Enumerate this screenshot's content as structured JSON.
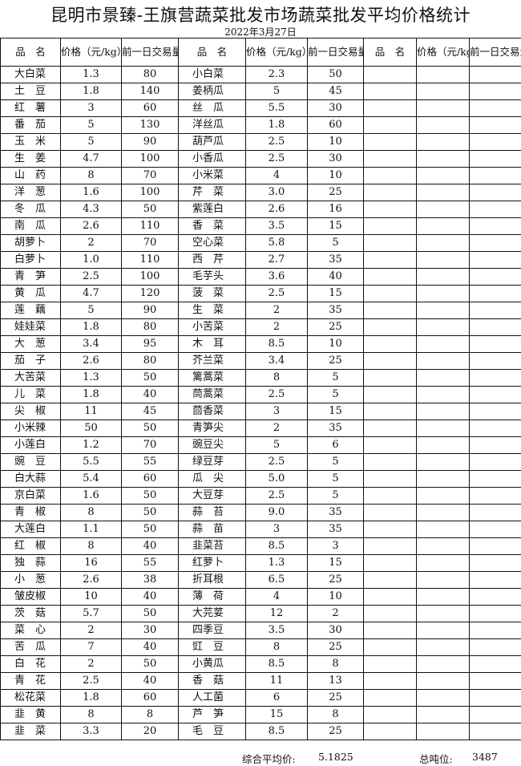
{
  "title": "昆明市景臻-王旗营蔬菜批发市场蔬菜批发平均价格统计",
  "date": "2022年3月27日",
  "headers": {
    "name": "品　名",
    "price": "价格（元/kg）",
    "volume": "前一日交易量(吨)"
  },
  "rows": [
    [
      "大白菜",
      "1.3",
      "80",
      "小白菜",
      "2.3",
      "50"
    ],
    [
      "土　豆",
      "1.8",
      "140",
      "姜柄瓜",
      "5",
      "45"
    ],
    [
      "红　薯",
      "3",
      "60",
      "丝　瓜",
      "5.5",
      "30"
    ],
    [
      "番　茄",
      "5",
      "130",
      "洋丝瓜",
      "1.8",
      "60"
    ],
    [
      "玉　米",
      "5",
      "90",
      "葫芦瓜",
      "2.5",
      "10"
    ],
    [
      "生　姜",
      "4.7",
      "100",
      "小香瓜",
      "2.5",
      "30"
    ],
    [
      "山　药",
      "8",
      "70",
      "小米菜",
      "4",
      "10"
    ],
    [
      "洋　葱",
      "1.6",
      "100",
      "芹　菜",
      "3.0",
      "25"
    ],
    [
      "冬　瓜",
      "4.3",
      "50",
      "紫莲白",
      "2.6",
      "16"
    ],
    [
      "南　瓜",
      "2.6",
      "110",
      "香　菜",
      "3.5",
      "15"
    ],
    [
      "胡萝卜",
      "2",
      "70",
      "空心菜",
      "5.8",
      "5"
    ],
    [
      "白萝卜",
      "1.0",
      "110",
      "西　芹",
      "2.7",
      "35"
    ],
    [
      "青　笋",
      "2.5",
      "100",
      "毛芋头",
      "3.6",
      "40"
    ],
    [
      "黄　瓜",
      "4.7",
      "120",
      "菠　菜",
      "2.5",
      "15"
    ],
    [
      "莲　藕",
      "5",
      "90",
      "生　菜",
      "2",
      "35"
    ],
    [
      "娃娃菜",
      "1.8",
      "80",
      "小苦菜",
      "2",
      "25"
    ],
    [
      "大　葱",
      "3.4",
      "95",
      "木　耳",
      "8.5",
      "10"
    ],
    [
      "茄　子",
      "2.6",
      "80",
      "芥兰菜",
      "3.4",
      "25"
    ],
    [
      "大苦菜",
      "1.3",
      "50",
      "篱蒿菜",
      "8",
      "5"
    ],
    [
      "儿　菜",
      "1.8",
      "40",
      "茼蒿菜",
      "2.5",
      "5"
    ],
    [
      "尖　椒",
      "11",
      "45",
      "茴香菜",
      "3",
      "15"
    ],
    [
      "小米辣",
      "50",
      "50",
      "青笋尖",
      "2",
      "35"
    ],
    [
      "小莲白",
      "1.2",
      "70",
      "豌豆尖",
      "5",
      "6"
    ],
    [
      "豌　豆",
      "5.5",
      "55",
      "绿豆芽",
      "2.5",
      "5"
    ],
    [
      "白大蒜",
      "5.4",
      "60",
      "瓜　尖",
      "5.0",
      "5"
    ],
    [
      "京白菜",
      "1.6",
      "50",
      "大豆芽",
      "2.5",
      "5"
    ],
    [
      "青　椒",
      "8",
      "50",
      "蒜　苔",
      "9.0",
      "35"
    ],
    [
      "大莲白",
      "1.1",
      "50",
      "蒜　苗",
      "3",
      "35"
    ],
    [
      "红　椒",
      "8",
      "40",
      "韭菜苔",
      "8.5",
      "3"
    ],
    [
      "独　蒜",
      "16",
      "55",
      "红萝卜",
      "1.3",
      "15"
    ],
    [
      "小　葱",
      "2.6",
      "38",
      "折耳根",
      "6.5",
      "25"
    ],
    [
      "皱皮椒",
      "10",
      "40",
      "薄　荷",
      "4",
      "10"
    ],
    [
      "茨　菇",
      "5.7",
      "50",
      "大芫荽",
      "12",
      "2"
    ],
    [
      "菜　心",
      "2",
      "30",
      "四季豆",
      "3.5",
      "30"
    ],
    [
      "苦　瓜",
      "7",
      "40",
      "豇　豆",
      "8",
      "25"
    ],
    [
      "白　花",
      "2",
      "50",
      "小黄瓜",
      "8.5",
      "8"
    ],
    [
      "青　花",
      "2.5",
      "40",
      "香　菇",
      "11",
      "13"
    ],
    [
      "松花菜",
      "1.8",
      "60",
      "人工菌",
      "6",
      "25"
    ],
    [
      "韭　黄",
      "8",
      "8",
      "芦　笋",
      "15",
      "8"
    ],
    [
      "韭　菜",
      "3.3",
      "20",
      "毛　豆",
      "8.5",
      "25"
    ]
  ],
  "footer": {
    "avg_label": "综合平均价:",
    "avg_value": "5.1825",
    "total_label": "总吨位:",
    "total_value": "3487"
  }
}
